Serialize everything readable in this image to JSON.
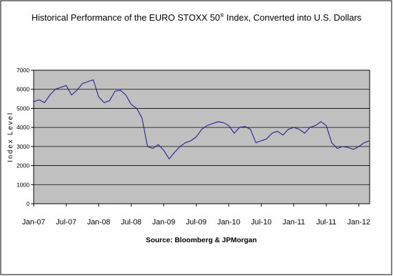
{
  "chart_data": {
    "type": "line",
    "title_main": "Historical Performance of the EURO STOXX 50",
    "title_sup": "®",
    "title_rest": " Index, Converted into U.S. Dollars",
    "source": "Source: Bloomberg & JPMorgan",
    "ylabel": "Index Level",
    "xlabel": "",
    "ylim": [
      0,
      7000
    ],
    "y_ticks": [
      "0",
      "1000",
      "2000",
      "3000",
      "4000",
      "5000",
      "6000",
      "7000"
    ],
    "x_tick_labels": [
      "Jan-07",
      "Jul-07",
      "Jan-08",
      "Jul-08",
      "Jan-09",
      "Jul-09",
      "Jan-10",
      "Jul-10",
      "Jan-11",
      "Jul-11",
      "Jan-12"
    ],
    "x_range": [
      "2007-01",
      "2012-03"
    ],
    "grid": true,
    "colors": {
      "line": "#1f1f8f",
      "plot_bg": "#c0c0c0",
      "grid": "#000000"
    },
    "series": [
      {
        "x": [
          "2007-01",
          "2007-02",
          "2007-03",
          "2007-04",
          "2007-05",
          "2007-06",
          "2007-07",
          "2007-08",
          "2007-09",
          "2007-10",
          "2007-11",
          "2007-12",
          "2008-01",
          "2008-02",
          "2008-03",
          "2008-04",
          "2008-05",
          "2008-06",
          "2008-07",
          "2008-08",
          "2008-09",
          "2008-10",
          "2008-11",
          "2008-12",
          "2009-01",
          "2009-02",
          "2009-03",
          "2009-04",
          "2009-05",
          "2009-06",
          "2009-07",
          "2009-08",
          "2009-09",
          "2009-10",
          "2009-11",
          "2009-12",
          "2010-01",
          "2010-02",
          "2010-03",
          "2010-04",
          "2010-05",
          "2010-06",
          "2010-07",
          "2010-08",
          "2010-09",
          "2010-10",
          "2010-11",
          "2010-12",
          "2011-01",
          "2011-02",
          "2011-03",
          "2011-04",
          "2011-05",
          "2011-06",
          "2011-07",
          "2011-08",
          "2011-09",
          "2011-10",
          "2011-11",
          "2011-12",
          "2012-01",
          "2012-02",
          "2012-03"
        ],
        "values": [
          5350,
          5450,
          5300,
          5700,
          6000,
          6100,
          6200,
          5700,
          5950,
          6300,
          6400,
          6500,
          5600,
          5300,
          5400,
          5900,
          5950,
          5700,
          5200,
          5000,
          4500,
          3000,
          2900,
          3100,
          2800,
          2350,
          2700,
          3000,
          3200,
          3300,
          3500,
          3900,
          4100,
          4200,
          4300,
          4250,
          4100,
          3700,
          4000,
          4050,
          3900,
          3200,
          3300,
          3400,
          3700,
          3800,
          3600,
          3900,
          4000,
          3900,
          3700,
          4000,
          4100,
          4300,
          4100,
          3200,
          2900,
          3000,
          2950,
          2850,
          3000,
          3200,
          3300
        ]
      }
    ]
  }
}
